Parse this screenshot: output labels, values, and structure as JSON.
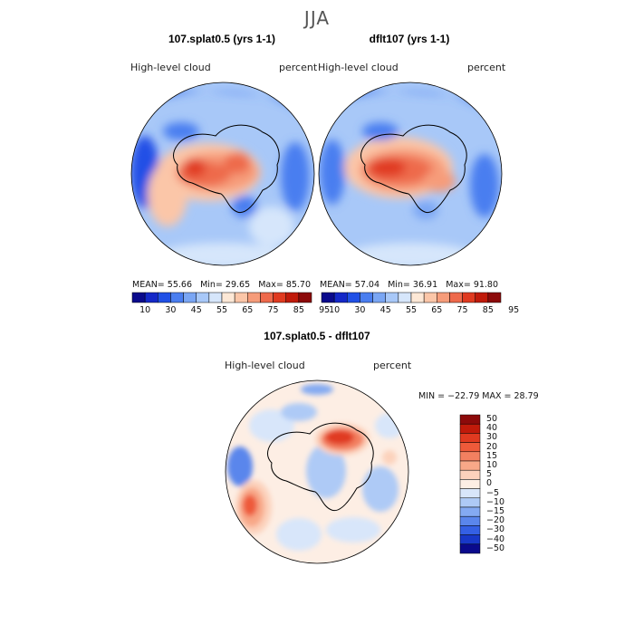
{
  "figure": {
    "title": "JJA"
  },
  "panels": [
    {
      "title": "107.splat0.5 (yrs 1-1)",
      "variable": "High-level cloud",
      "units": "percent",
      "stats": {
        "mean_label": "MEAN=",
        "mean": "55.66",
        "min_label": "Min=",
        "min": "29.65",
        "max_label": "Max=",
        "max": "85.70"
      }
    },
    {
      "title": "dflt107 (yrs 1-1)",
      "variable": "High-level cloud",
      "units": "percent",
      "stats": {
        "mean_label": "MEAN=",
        "mean": "57.04",
        "min_label": "Min=",
        "min": "36.91",
        "max_label": "Max=",
        "max": "91.80"
      }
    },
    {
      "title": "107.splat0.5 - dflt107",
      "variable": "High-level cloud",
      "units": "percent",
      "stats_text": "MIN = −22.79  MAX =   28.79"
    }
  ],
  "colorbar_top": {
    "tick_labels": [
      "10",
      "30",
      "45",
      "55",
      "65",
      "75",
      "85",
      "95"
    ],
    "colors": [
      "#0a0a8c",
      "#1428c8",
      "#2050e6",
      "#4a7ef0",
      "#7aa6f4",
      "#a8c8f8",
      "#d6e6fb",
      "#fde8d6",
      "#fbc6a8",
      "#f69c7a",
      "#ee6a4c",
      "#e03a20",
      "#c01a0a",
      "#8c0a0a"
    ]
  },
  "colorbar_diff": {
    "tick_labels": [
      "50",
      "40",
      "30",
      "20",
      "15",
      "10",
      "5",
      "0",
      "−5",
      "−10",
      "−15",
      "−20",
      "−30",
      "−40",
      "−50"
    ],
    "colors": [
      "#8c0a0a",
      "#c01a0a",
      "#e03a20",
      "#ee5a3a",
      "#f38060",
      "#f8a888",
      "#fcd2bc",
      "#fdeee4",
      "#d8e6fa",
      "#aecaf6",
      "#84aaf2",
      "#5a86ec",
      "#3460e4",
      "#1838c8",
      "#0a0a8c"
    ]
  },
  "chart_data": [
    {
      "type": "heatmap",
      "projection": "south polar stereographic",
      "title": "107.splat0.5 (yrs 1-1)",
      "variable": "High-level cloud",
      "units": "percent",
      "mean": 55.66,
      "min": 29.65,
      "max": 85.7,
      "levels": [
        10,
        30,
        45,
        55,
        65,
        75,
        85,
        95
      ]
    },
    {
      "type": "heatmap",
      "projection": "south polar stereographic",
      "title": "dflt107 (yrs 1-1)",
      "variable": "High-level cloud",
      "units": "percent",
      "mean": 57.04,
      "min": 36.91,
      "max": 91.8,
      "levels": [
        10,
        30,
        45,
        55,
        65,
        75,
        85,
        95
      ]
    },
    {
      "type": "heatmap",
      "projection": "south polar stereographic",
      "title": "107.splat0.5 - dflt107",
      "variable": "High-level cloud",
      "units": "percent",
      "min": -22.79,
      "max": 28.79,
      "levels": [
        -50,
        -40,
        -30,
        -20,
        -15,
        -10,
        -5,
        0,
        5,
        10,
        15,
        20,
        30,
        40,
        50
      ]
    }
  ]
}
